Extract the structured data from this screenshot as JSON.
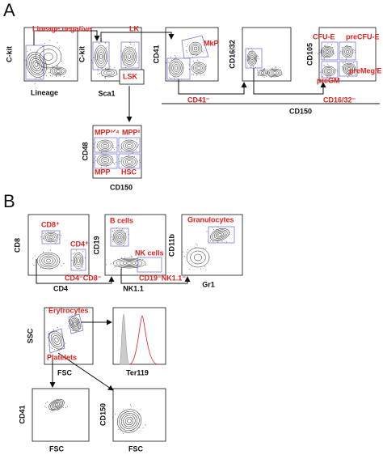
{
  "panel_a": {
    "letter": "A",
    "gates": {
      "lineage_negative": "Lineage negative",
      "lk": "LK",
      "lsk": "LSK",
      "mkp": "MkP",
      "cfu_e": "CFU-E",
      "pre_cfu_e": "preCFU-E",
      "pre_meg_e": "preMeg/E",
      "pre_gm": "preGM",
      "cd41_neg": "CD41⁻",
      "cd16_32_neg": "CD16/32⁻",
      "mpp3_4": "MPP³ᐟ⁴",
      "mpp2": "MPP²",
      "mpp": "MPP",
      "hsc": "HSC"
    },
    "axes": {
      "plot1_y": "C-kit",
      "plot1_x": "Lineage",
      "plot2_y": "C-kit",
      "plot2_x": "Sca1",
      "plot3_y": "CD41",
      "plot4_y": "CD16/32",
      "plot5_y": "CD105",
      "shared_x": "CD150",
      "plot6_y": "CD48",
      "plot6_x": "CD150"
    }
  },
  "panel_b": {
    "letter": "B",
    "gates": {
      "cd8_pos": "CD8⁺",
      "cd4_pos": "CD4⁺",
      "b_cells": "B cells",
      "nk_cells": "NK cells",
      "granulocytes": "Granulocytes",
      "cd4_cd8_neg": "CD4⁻CD8⁻",
      "cd19_nk_neg": "CD19⁻NK1.1⁻",
      "erytrocytes": "Erytrocytes",
      "platelets": "Platelets"
    },
    "axes": {
      "plot7_y": "CD8",
      "plot7_x": "CD4",
      "plot8_y": "CD19",
      "plot8_x": "NK1.1",
      "plot9_y": "CD11b",
      "plot9_x": "Gr1",
      "plot10_y": "SSC",
      "plot10_x": "FSC",
      "plot11_x": "Ter119",
      "plot12_y": "CD41",
      "plot12_x": "FSC",
      "plot13_y": "CD150",
      "plot13_x": "FSC"
    }
  }
}
